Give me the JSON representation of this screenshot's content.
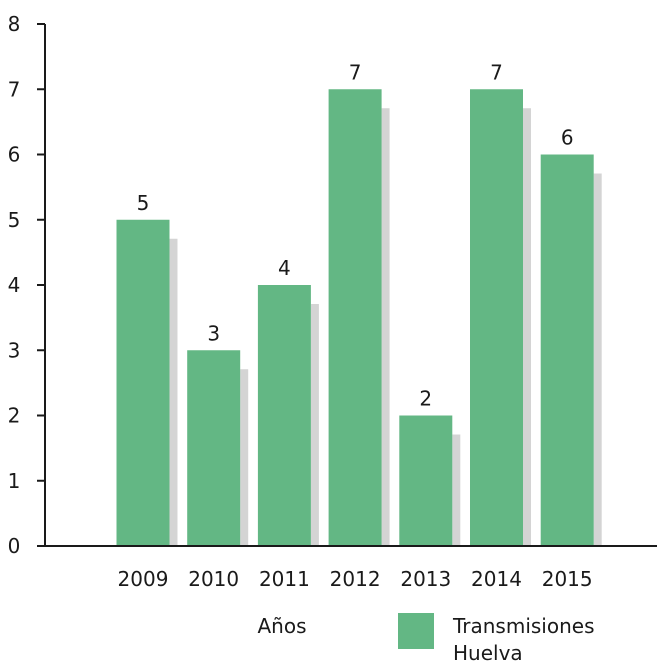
{
  "chart_data": {
    "type": "bar",
    "categories": [
      "2009",
      "2010",
      "2011",
      "2012",
      "2013",
      "2014",
      "2015"
    ],
    "series": [
      {
        "name": "Transmisiones Huelva",
        "values": [
          5,
          3,
          4,
          7,
          2,
          7,
          6
        ]
      }
    ],
    "xlabel": "Años",
    "ylabel": "",
    "ylim": [
      0,
      8
    ],
    "yticks": [
      "0",
      "1",
      "2",
      "3",
      "4",
      "5",
      "6",
      "7",
      "8"
    ],
    "data_labels": [
      "5",
      "3",
      "4",
      "7",
      "2",
      "7",
      "6"
    ],
    "legend": {
      "placement": "bottom-right",
      "lines": [
        "Transmisiones",
        "Huelva"
      ]
    },
    "grid": false,
    "colors": {
      "bar": "#63b784",
      "shadow": "#d4d4d4",
      "axis": "#1a1a1a"
    }
  }
}
